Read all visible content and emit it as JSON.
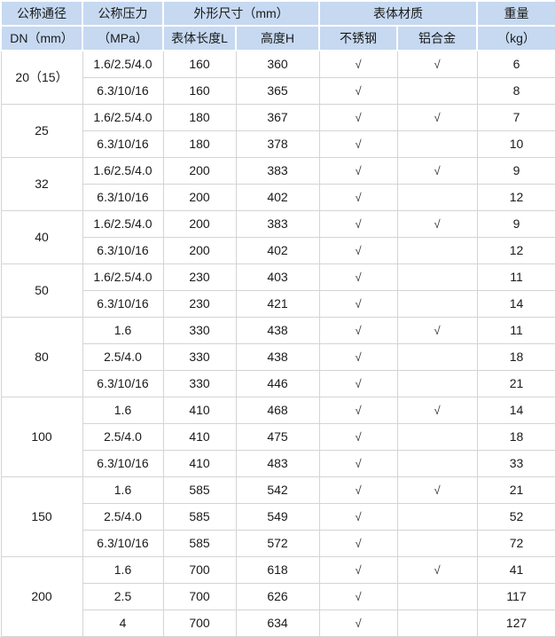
{
  "table": {
    "header": {
      "dn_line1": "公称通径",
      "dn_line2": "DN（mm）",
      "pressure_line1": "公称压力",
      "pressure_line2": "（MPa）",
      "dimensions_group": "外形尺寸（mm）",
      "body_length": "表体长度L",
      "height": "高度H",
      "material_group": "表体材质",
      "stainless": "不锈钢",
      "aluminum": "铝合金",
      "weight_line1": "重量",
      "weight_line2": "（kg）"
    },
    "groups": [
      {
        "dn": "20（15）",
        "rows": [
          {
            "pressure": "1.6/2.5/4.0",
            "length": "160",
            "height": "360",
            "stainless": "√",
            "aluminum": "√",
            "weight": "6"
          },
          {
            "pressure": "6.3/10/16",
            "length": "160",
            "height": "365",
            "stainless": "√",
            "aluminum": "",
            "weight": "8"
          }
        ]
      },
      {
        "dn": "25",
        "rows": [
          {
            "pressure": "1.6/2.5/4.0",
            "length": "180",
            "height": "367",
            "stainless": "√",
            "aluminum": "√",
            "weight": "7"
          },
          {
            "pressure": "6.3/10/16",
            "length": "180",
            "height": "378",
            "stainless": "√",
            "aluminum": "",
            "weight": "10"
          }
        ]
      },
      {
        "dn": "32",
        "rows": [
          {
            "pressure": "1.6/2.5/4.0",
            "length": "200",
            "height": "383",
            "stainless": "√",
            "aluminum": "√",
            "weight": "9"
          },
          {
            "pressure": "6.3/10/16",
            "length": "200",
            "height": "402",
            "stainless": "√",
            "aluminum": "",
            "weight": "12"
          }
        ]
      },
      {
        "dn": "40",
        "rows": [
          {
            "pressure": "1.6/2.5/4.0",
            "length": "200",
            "height": "383",
            "stainless": "√",
            "aluminum": "√",
            "weight": "9"
          },
          {
            "pressure": "6.3/10/16",
            "length": "200",
            "height": "402",
            "stainless": "√",
            "aluminum": "",
            "weight": "12"
          }
        ]
      },
      {
        "dn": "50",
        "rows": [
          {
            "pressure": "1.6/2.5/4.0",
            "length": "230",
            "height": "403",
            "stainless": "√",
            "aluminum": "",
            "weight": "11"
          },
          {
            "pressure": "6.3/10/16",
            "length": "230",
            "height": "421",
            "stainless": "√",
            "aluminum": "",
            "weight": "14"
          }
        ]
      },
      {
        "dn": "80",
        "rows": [
          {
            "pressure": "1.6",
            "length": "330",
            "height": "438",
            "stainless": "√",
            "aluminum": "√",
            "weight": "11"
          },
          {
            "pressure": "2.5/4.0",
            "length": "330",
            "height": "438",
            "stainless": "√",
            "aluminum": "",
            "weight": "18"
          },
          {
            "pressure": "6.3/10/16",
            "length": "330",
            "height": "446",
            "stainless": "√",
            "aluminum": "",
            "weight": "21"
          }
        ]
      },
      {
        "dn": "100",
        "rows": [
          {
            "pressure": "1.6",
            "length": "410",
            "height": "468",
            "stainless": "√",
            "aluminum": "√",
            "weight": "14"
          },
          {
            "pressure": "2.5/4.0",
            "length": "410",
            "height": "475",
            "stainless": "√",
            "aluminum": "",
            "weight": "18"
          },
          {
            "pressure": "6.3/10/16",
            "length": "410",
            "height": "483",
            "stainless": "√",
            "aluminum": "",
            "weight": "33"
          }
        ]
      },
      {
        "dn": "150",
        "rows": [
          {
            "pressure": "1.6",
            "length": "585",
            "height": "542",
            "stainless": "√",
            "aluminum": "√",
            "weight": "21"
          },
          {
            "pressure": "2.5/4.0",
            "length": "585",
            "height": "549",
            "stainless": "√",
            "aluminum": "",
            "weight": "52"
          },
          {
            "pressure": "6.3/10/16",
            "length": "585",
            "height": "572",
            "stainless": "√",
            "aluminum": "",
            "weight": "72"
          }
        ]
      },
      {
        "dn": "200",
        "rows": [
          {
            "pressure": "1.6",
            "length": "700",
            "height": "618",
            "stainless": "√",
            "aluminum": "√",
            "weight": "41"
          },
          {
            "pressure": "2.5",
            "length": "700",
            "height": "626",
            "stainless": "√",
            "aluminum": "",
            "weight": "117"
          },
          {
            "pressure": "4",
            "length": "700",
            "height": "634",
            "stainless": "√",
            "aluminum": "",
            "weight": "127"
          }
        ]
      }
    ]
  },
  "colors": {
    "header_bg": "#c6d9f1",
    "header_divider": "#ffffff",
    "grid_line": "#d4d4d4",
    "text": "#1a1a1a",
    "check": "#333333"
  }
}
